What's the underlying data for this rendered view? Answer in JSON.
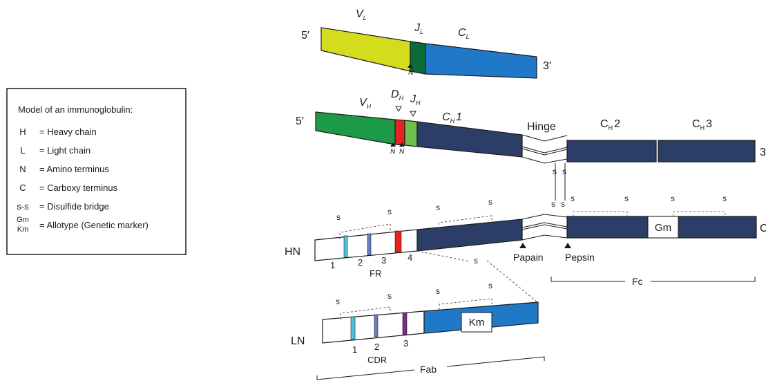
{
  "legend": {
    "title": "Model of an immunoglobulin:",
    "items": [
      {
        "sym": "H",
        "desc": "= Heavy chain"
      },
      {
        "sym": "L",
        "desc": "= Light chain"
      },
      {
        "sym": "N",
        "desc": "= Amino terminus"
      },
      {
        "sym": "C",
        "desc": "= Carboxy terminus"
      },
      {
        "sym": "s-s",
        "desc": "= Disulfide bridge"
      },
      {
        "sym_top": "Gm",
        "sym_bottom": "Km",
        "desc": "= Allotype (Genetic marker)"
      }
    ]
  },
  "light_gene": {
    "five_prime": "5′",
    "three_prime": "3′",
    "v": "V",
    "v_sub": "L",
    "j": "J",
    "j_sub": "L",
    "c": "C",
    "c_sub": "L",
    "n": "N"
  },
  "heavy_gene": {
    "five_prime": "5′",
    "three_prime": "3",
    "v": "V",
    "v_sub": "H",
    "d": "D",
    "d_sub": "H",
    "j": "J",
    "j_sub": "H",
    "ch1": "C",
    "ch1_sub": "H",
    "ch1_num": "1",
    "hinge": "Hinge",
    "ch2": "C",
    "ch2_sub": "H",
    "ch2_num": "2",
    "ch3": "C",
    "ch3_sub": "H",
    "ch3_num": "3",
    "n1": "N",
    "n2": "N"
  },
  "heavy_protein": {
    "label": "HN",
    "end": "C",
    "gm": "Gm",
    "fr": [
      "1",
      "2",
      "3",
      "4"
    ],
    "fr_label": "FR",
    "papain": "Papain",
    "pepsin": "Pepsin",
    "fc": "Fc"
  },
  "light_protein": {
    "label": "LN",
    "km": "Km",
    "cdr": [
      "1",
      "2",
      "3"
    ],
    "cdr_label": "CDR",
    "fab": "Fab"
  },
  "s": "s"
}
